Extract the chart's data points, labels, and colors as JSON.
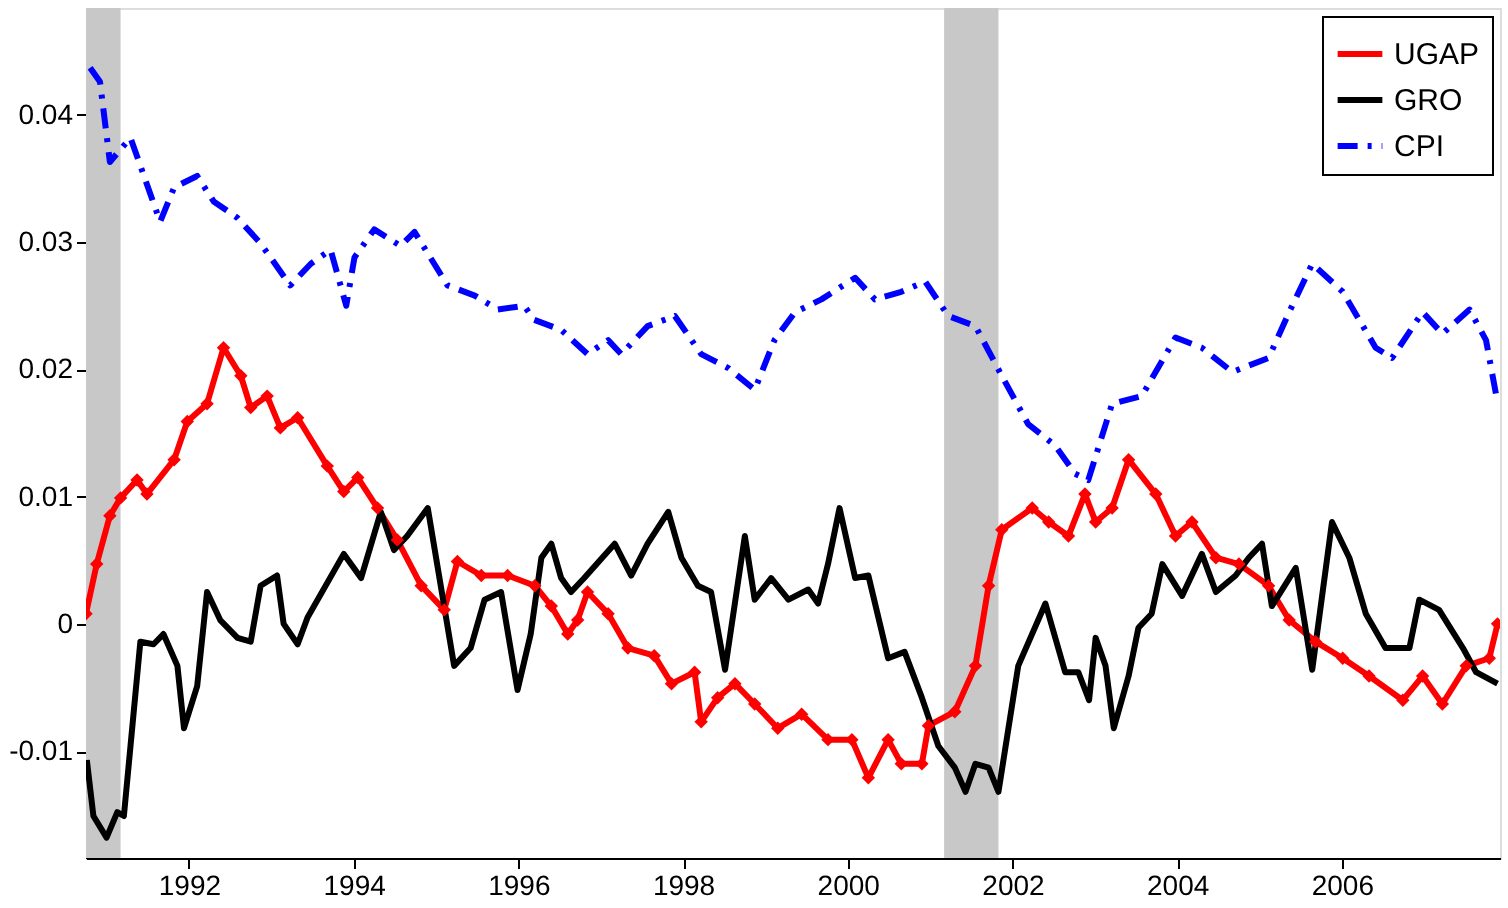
{
  "chart_data": {
    "type": "line",
    "xlim": [
      1990.75,
      2007.92
    ],
    "xticks": [
      1992,
      1994,
      1996,
      1998,
      2000,
      2002,
      2004,
      2006
    ],
    "ylim": [
      -0.0184,
      0.0484
    ],
    "yticks": [
      -0.01,
      0,
      0.01,
      0.02,
      0.03,
      0.04
    ],
    "grid": false,
    "legend": "top right",
    "bands": [
      {
        "axis": "x",
        "from": 1990.75,
        "to": 1991.17,
        "color": "#c8c8c8"
      },
      {
        "axis": "x",
        "from": 2001.17,
        "to": 2001.83,
        "color": "#c8c8c8"
      }
    ],
    "series": [
      {
        "name": "UGAP",
        "color": "#ff0000",
        "marker": "diamond",
        "line_style": "solid",
        "x": [
          1990.75,
          1990.88,
          1991.04,
          1991.17,
          1991.37,
          1991.49,
          1991.82,
          1991.98,
          1992.22,
          1992.42,
          1992.63,
          1992.75,
          1992.95,
          1993.11,
          1993.32,
          1993.68,
          1993.88,
          1994.05,
          1994.29,
          1994.53,
          1994.82,
          1995.1,
          1995.26,
          1995.55,
          1995.87,
          1996.2,
          1996.4,
          1996.6,
          1996.72,
          1996.84,
          1997.09,
          1997.33,
          1997.65,
          1997.86,
          1998.14,
          1998.22,
          1998.42,
          1998.63,
          1998.87,
          1999.15,
          1999.44,
          1999.76,
          2000.05,
          2000.25,
          2000.49,
          2000.65,
          2000.9,
          2000.98,
          2001.3,
          2001.55,
          2001.71,
          2001.87,
          2002.24,
          2002.44,
          2002.68,
          2002.88,
          2003.01,
          2003.21,
          2003.41,
          2003.74,
          2003.98,
          2004.18,
          2004.47,
          2004.75,
          2005.11,
          2005.36,
          2005.68,
          2006.01,
          2006.33,
          2006.74,
          2006.98,
          2007.22,
          2007.51,
          2007.79,
          2007.89
        ],
        "values": [
          0.0008,
          0.0047,
          0.0085,
          0.0099,
          0.0113,
          0.0102,
          0.0129,
          0.0159,
          0.0173,
          0.0217,
          0.0195,
          0.017,
          0.0179,
          0.0154,
          0.0162,
          0.0124,
          0.0104,
          0.0115,
          0.0091,
          0.0066,
          0.003,
          0.0011,
          0.0049,
          0.0038,
          0.0038,
          0.003,
          0.0014,
          -0.0008,
          0.0003,
          0.0025,
          0.0008,
          -0.0019,
          -0.0025,
          -0.0047,
          -0.0038,
          -0.0077,
          -0.0058,
          -0.0047,
          -0.0063,
          -0.0082,
          -0.0071,
          -0.0091,
          -0.0091,
          -0.0121,
          -0.0091,
          -0.011,
          -0.011,
          -0.008,
          -0.0069,
          -0.0033,
          0.003,
          0.0074,
          0.0091,
          0.008,
          0.0069,
          0.0102,
          0.008,
          0.0091,
          0.0129,
          0.0102,
          0.0069,
          0.008,
          0.0052,
          0.0047,
          0.003,
          0.0003,
          -0.0014,
          -0.0027,
          -0.0041,
          -0.006,
          -0.0041,
          -0.0063,
          -0.0033,
          -0.0027,
          0.0
        ]
      },
      {
        "name": "GRO",
        "color": "#000000",
        "marker": "none",
        "line_style": "solid",
        "x": [
          1990.76,
          1990.84,
          1991.0,
          1991.13,
          1991.21,
          1991.41,
          1991.57,
          1991.69,
          1991.86,
          1991.94,
          1992.1,
          1992.22,
          1992.38,
          1992.59,
          1992.75,
          1992.87,
          1993.07,
          1993.15,
          1993.32,
          1993.44,
          1993.88,
          1994.09,
          1994.33,
          1994.49,
          1994.65,
          1994.9,
          1995.22,
          1995.42,
          1995.59,
          1995.79,
          1995.99,
          1996.15,
          1996.28,
          1996.4,
          1996.52,
          1996.64,
          1996.8,
          1997.17,
          1997.37,
          1997.57,
          1997.82,
          1997.98,
          1998.18,
          1998.34,
          1998.51,
          1998.75,
          1998.87,
          1999.07,
          1999.28,
          1999.52,
          1999.64,
          1999.76,
          1999.9,
          2000.09,
          2000.25,
          2000.49,
          2000.69,
          2000.9,
          2001.1,
          2001.3,
          2001.43,
          2001.55,
          2001.71,
          2001.83,
          2002.07,
          2002.4,
          2002.64,
          2002.8,
          2002.93,
          2003.01,
          2003.13,
          2003.23,
          2003.41,
          2003.53,
          2003.69,
          2003.82,
          2004.06,
          2004.3,
          2004.47,
          2004.71,
          2004.87,
          2005.03,
          2005.15,
          2005.44,
          2005.64,
          2005.88,
          2006.09,
          2006.29,
          2006.53,
          2006.82,
          2006.94,
          2007.18,
          2007.47,
          2007.63,
          2007.89
        ],
        "values": [
          -0.0107,
          -0.0151,
          -0.0168,
          -0.0148,
          -0.0151,
          -0.0014,
          -0.0016,
          -0.0008,
          -0.0033,
          -0.0082,
          -0.0049,
          0.0025,
          0.0003,
          -0.0011,
          -0.0014,
          0.003,
          0.0038,
          0.0,
          -0.0016,
          0.0005,
          0.0055,
          0.0036,
          0.0088,
          0.0058,
          0.0069,
          0.0091,
          -0.0033,
          -0.0019,
          0.0019,
          0.0025,
          -0.0052,
          -0.0008,
          0.0052,
          0.0063,
          0.0036,
          0.0025,
          0.0036,
          0.0063,
          0.0038,
          0.0063,
          0.0088,
          0.0052,
          0.003,
          0.0025,
          -0.0036,
          0.0069,
          0.0019,
          0.0036,
          0.0019,
          0.0027,
          0.0016,
          0.0047,
          0.0091,
          0.0036,
          0.0038,
          -0.0027,
          -0.0022,
          -0.0058,
          -0.0096,
          -0.0113,
          -0.0132,
          -0.011,
          -0.0113,
          -0.0132,
          -0.0033,
          0.0016,
          -0.0038,
          -0.0038,
          -0.006,
          -0.0011,
          -0.0033,
          -0.0082,
          -0.0041,
          -0.0003,
          0.0008,
          0.0047,
          0.0022,
          0.0055,
          0.0025,
          0.0038,
          0.0052,
          0.0063,
          0.0014,
          0.0044,
          -0.0036,
          0.008,
          0.0052,
          0.0008,
          -0.0019,
          -0.0019,
          0.0019,
          0.0011,
          -0.0019,
          -0.0038,
          -0.0047
        ]
      },
      {
        "name": "CPI",
        "color": "#0000ff",
        "marker": "none",
        "line_style": "dashed",
        "x": [
          1990.8,
          1990.92,
          1991.04,
          1991.29,
          1991.65,
          1991.82,
          1992.1,
          1992.3,
          1992.59,
          1992.87,
          1993.23,
          1993.48,
          1993.72,
          1993.91,
          1994.01,
          1994.25,
          1994.57,
          1994.74,
          1995.14,
          1995.47,
          1995.75,
          1996.07,
          1996.19,
          1996.52,
          1996.84,
          1997.09,
          1997.25,
          1997.57,
          1997.9,
          1998.22,
          1998.55,
          1998.87,
          1999.11,
          1999.36,
          1999.68,
          2000.09,
          2000.33,
          2000.65,
          2000.94,
          2001.22,
          2001.55,
          2001.87,
          2002.19,
          2002.52,
          2002.76,
          2002.92,
          2003.21,
          2003.57,
          2003.98,
          2004.3,
          2004.67,
          2005.11,
          2005.36,
          2005.64,
          2006.01,
          2006.41,
          2006.61,
          2006.98,
          2007.22,
          2007.55,
          2007.75,
          2007.87
        ],
        "values": [
          0.0437,
          0.0426,
          0.0363,
          0.0382,
          0.0316,
          0.0343,
          0.0352,
          0.0332,
          0.0319,
          0.0299,
          0.0266,
          0.0283,
          0.0294,
          0.025,
          0.0288,
          0.031,
          0.0297,
          0.0308,
          0.0266,
          0.0258,
          0.0247,
          0.025,
          0.0239,
          0.0231,
          0.0212,
          0.0223,
          0.0212,
          0.0234,
          0.0242,
          0.0212,
          0.0201,
          0.0184,
          0.0223,
          0.0245,
          0.0255,
          0.0272,
          0.0255,
          0.0261,
          0.0269,
          0.0242,
          0.0234,
          0.0195,
          0.0157,
          0.014,
          0.0118,
          0.0113,
          0.0173,
          0.0179,
          0.0225,
          0.0217,
          0.0198,
          0.0209,
          0.0245,
          0.0283,
          0.0261,
          0.0217,
          0.0209,
          0.0245,
          0.0228,
          0.0247,
          0.0223,
          0.0181
        ]
      }
    ]
  }
}
